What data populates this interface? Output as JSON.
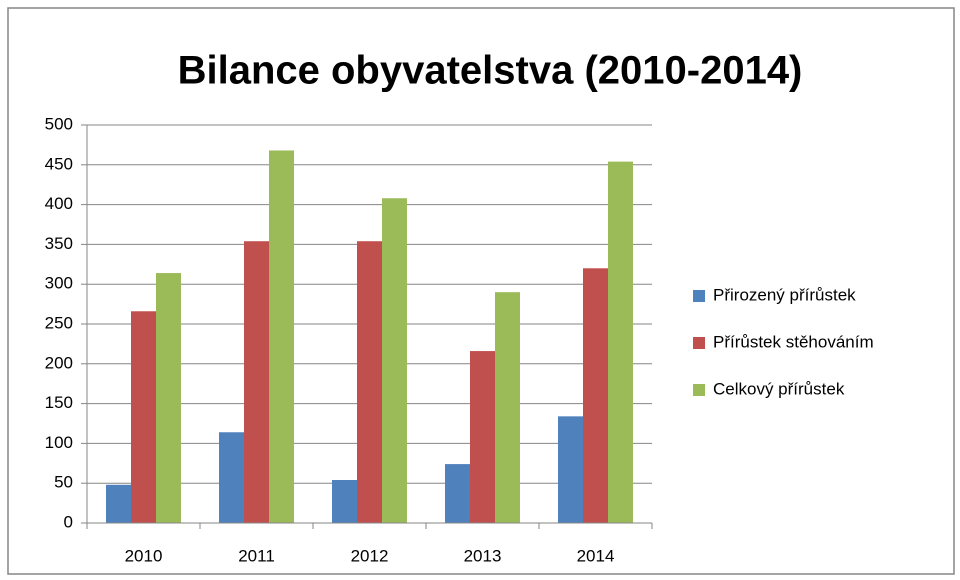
{
  "chart_data": {
    "type": "bar",
    "title": "Bilance obyvatelstva  (2010-2014)",
    "categories": [
      "2010",
      "2011",
      "2012",
      "2013",
      "2014"
    ],
    "series": [
      {
        "name": "Přirozený přírůstek",
        "color": "#4f81bd",
        "values": [
          48,
          114,
          54,
          74,
          134
        ]
      },
      {
        "name": "Přírůstek stěhováním",
        "color": "#c0504d",
        "values": [
          266,
          354,
          354,
          216,
          320
        ]
      },
      {
        "name": "Celkový přírůstek",
        "color": "#9bbb59",
        "values": [
          314,
          468,
          408,
          290,
          454
        ]
      }
    ],
    "ylim": [
      0,
      500
    ],
    "yticks": [
      0,
      50,
      100,
      150,
      200,
      250,
      300,
      350,
      400,
      450,
      500
    ],
    "grid": true,
    "legend": "right"
  }
}
